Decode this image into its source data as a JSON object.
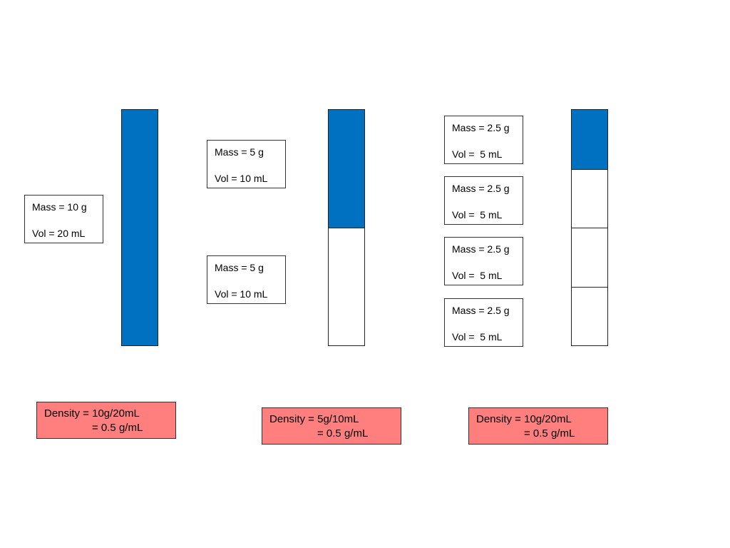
{
  "columns": [
    {
      "boxes": [
        {
          "mass": "Mass = 10 g",
          "vol": "Vol = 20 mL"
        }
      ],
      "density": {
        "line1": "Density = 10g/20mL",
        "line2": "= 0.5 g/mL"
      }
    },
    {
      "boxes": [
        {
          "mass": "Mass = 5 g",
          "vol": "Vol = 10 mL"
        },
        {
          "mass": "Mass = 5 g",
          "vol": "Vol = 10 mL"
        }
      ],
      "density": {
        "line1": "Density = 5g/10mL",
        "line2": "= 0.5 g/mL"
      }
    },
    {
      "boxes": [
        {
          "mass": "Mass = 2.5 g",
          "vol": "Vol =  5 mL"
        },
        {
          "mass": "Mass = 2.5 g",
          "vol": "Vol =  5 mL"
        },
        {
          "mass": "Mass = 2.5 g",
          "vol": "Vol =  5 mL"
        },
        {
          "mass": "Mass = 2.5 g",
          "vol": "Vol =  5 mL"
        }
      ],
      "density": {
        "line1": "Density = 10g/20mL",
        "line2": "= 0.5 g/mL"
      }
    }
  ]
}
